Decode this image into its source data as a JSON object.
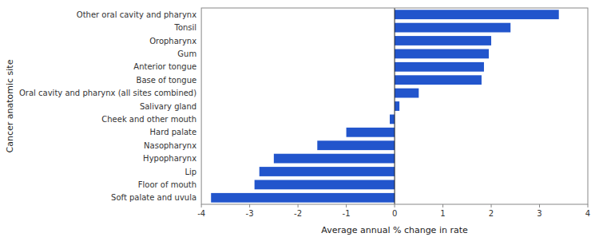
{
  "chart_data": {
    "type": "bar",
    "orientation": "horizontal",
    "categories": [
      "Soft palate and uvula",
      "Floor of mouth",
      "Lip",
      "Hypopharynx",
      "Nasopharynx",
      "Hard palate",
      "Cheek and other mouth",
      "Salivary gland",
      "Oral cavity and pharynx (all sites combined)",
      "Base of tongue",
      "Anterior tongue",
      "Gum",
      "Oropharynx",
      "Tonsil",
      "Other oral cavity and pharynx"
    ],
    "values": [
      -3.8,
      -2.9,
      -2.8,
      -2.5,
      -1.6,
      -1.0,
      -0.1,
      0.1,
      0.5,
      1.8,
      1.85,
      1.95,
      2.0,
      2.4,
      3.4
    ],
    "color": "#2255CC",
    "xlabel": "Average annual % change in rate",
    "ylabel": "Cancer anatomic site",
    "xlim": [
      -4,
      4
    ],
    "xticks": [
      -4,
      -3,
      -2,
      -1,
      0,
      1,
      2,
      3,
      4
    ]
  }
}
